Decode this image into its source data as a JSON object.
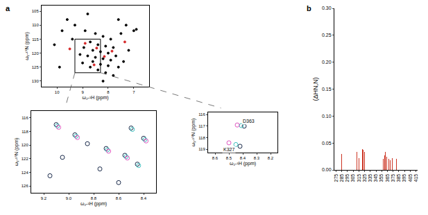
{
  "panels": [
    "a",
    "b"
  ],
  "chart_data": [
    {
      "type": "scatter",
      "panel": "a",
      "x_label": "ω₂-¹H (ppm)",
      "y_label": "ω₁-¹⁵N (ppm)",
      "xlim": [
        10.6,
        6.4
      ],
      "ylim": [
        132,
        103
      ],
      "xticks": [
        10,
        9,
        8,
        7
      ],
      "yticks": [
        105,
        110,
        115,
        120,
        125,
        130
      ],
      "box": {
        "x": [
          9.3,
          8.3
        ],
        "y": [
          127,
          115
        ]
      },
      "series": [
        {
          "color": "#000000",
          "marker": "circle",
          "x": [
            9.6,
            9.3,
            8.9,
            8.5,
            8.2,
            7.9,
            8.7,
            8.4,
            8.1,
            7.8,
            8.95,
            8.6,
            8.3,
            8.0,
            7.7,
            9.1,
            8.8,
            8.5,
            8.2,
            7.9,
            8.6,
            8.3,
            8.0,
            7.6,
            9.0,
            8.7,
            8.4,
            8.1,
            7.8,
            9.4,
            9.8,
            10.1,
            7.3,
            7.0,
            6.9,
            7.5,
            7.2,
            7.4,
            8.8,
            9.9,
            8.2,
            7.6
          ],
          "y": [
            108,
            110,
            112,
            113,
            114,
            115,
            116,
            117,
            117.5,
            118,
            118,
            119,
            119.5,
            120,
            121,
            120.5,
            121,
            121.5,
            122,
            122.5,
            123,
            124,
            124.5,
            125,
            123.5,
            125,
            126,
            127,
            128,
            115,
            112,
            117,
            110,
            112,
            111.5,
            113,
            119,
            123,
            106,
            125,
            130,
            108
          ]
        },
        {
          "color": "#d62728",
          "marker": "circle",
          "x": [
            8.9,
            8.45,
            8.15,
            7.85,
            8.55,
            9.5,
            7.35
          ],
          "y": [
            116.5,
            118.2,
            121.2,
            119.3,
            124.2,
            118.5,
            116
          ]
        }
      ]
    },
    {
      "type": "scatter",
      "panel": "a",
      "x_label": "ω₂-¹H (ppm)",
      "y_label": "ω₁-¹⁵N (ppm)",
      "xlim": [
        9.3,
        8.3
      ],
      "ylim": [
        127,
        115
      ],
      "xticks": [
        9.2,
        {
          "value": 9,
          "label": "9.0"
        },
        8.8,
        8.6,
        8.4
      ],
      "yticks": [
        116,
        118,
        120,
        122,
        124,
        126
      ],
      "series": [
        {
          "color": "#1a2a4a",
          "marker": "circle-open",
          "x": [
            9.1,
            8.95,
            8.85,
            8.7,
            8.55,
            8.45,
            8.75,
            9.15,
            8.6,
            8.4,
            8.5,
            9.05
          ],
          "y": [
            117,
            118.5,
            119.8,
            120.5,
            121.5,
            122.8,
            123.5,
            124.5,
            125.5,
            119,
            117.5,
            121.8
          ]
        },
        {
          "color": "#3fbfbf",
          "marker": "circle-open",
          "x": [
            9.09,
            8.94,
            8.69,
            8.54,
            8.44,
            8.39,
            8.49
          ],
          "y": [
            117.2,
            118.7,
            120.7,
            121.7,
            123.0,
            119.2,
            117.7
          ]
        },
        {
          "color": "#e055c0",
          "marker": "circle-open",
          "x": [
            9.08,
            8.93,
            8.68,
            8.53,
            8.38
          ],
          "y": [
            117.4,
            118.9,
            120.9,
            121.9,
            119.4
          ]
        }
      ]
    },
    {
      "type": "scatter",
      "panel": "a",
      "x_label": "ω₂-¹H (ppm)",
      "y_label": "ω₁-¹⁵N (ppm)",
      "xlim": [
        8.65,
        8.15
      ],
      "ylim": [
        119.3,
        115.8
      ],
      "xticks": [
        8.6,
        8.5,
        8.4,
        8.3,
        8.2
      ],
      "yticks": [
        116,
        117,
        118,
        119
      ],
      "annotations": [
        {
          "text": "D363",
          "x": 8.36,
          "y": 116.55
        },
        {
          "text": "K327",
          "x": 8.5,
          "y": 119.0
        }
      ],
      "series": [
        {
          "color": "#1a2a4a",
          "marker": "circle-open",
          "x": [
            8.39,
            8.42
          ],
          "y": [
            117.0,
            118.75
          ]
        },
        {
          "color": "#3fbfbf",
          "marker": "circle-open",
          "x": [
            8.41,
            8.45
          ],
          "y": [
            116.95,
            118.6
          ]
        },
        {
          "color": "#e055c0",
          "marker": "circle-open",
          "x": [
            8.44,
            8.5
          ],
          "y": [
            116.9,
            118.45
          ]
        }
      ]
    },
    {
      "type": "bar",
      "panel": "b",
      "y_label": "(ΔHN,N)",
      "x": [
        285,
        311,
        315,
        321,
        323,
        325,
        358,
        360,
        362,
        364,
        367,
        370,
        373,
        381
      ],
      "values": [
        0.03,
        0.033,
        0.022,
        0.038,
        0.037,
        0.033,
        0.02,
        0.027,
        0.033,
        0.025,
        0.02,
        0.018,
        0.022,
        0.02
      ],
      "color": "#cc3322",
      "xlim": [
        272,
        418
      ],
      "ylim": [
        0,
        0.3
      ],
      "xticks": [
        275,
        285,
        295,
        305,
        315,
        325,
        335,
        345,
        355,
        365,
        375,
        385,
        395,
        405,
        415
      ],
      "yticks": [
        {
          "value": 0,
          "label": "0.00"
        },
        0.05,
        {
          "value": 0.1,
          "label": "0.10"
        },
        0.15,
        {
          "value": 0.2,
          "label": "0.20"
        },
        0.25,
        {
          "value": 0.3,
          "label": "0.30"
        }
      ]
    }
  ]
}
